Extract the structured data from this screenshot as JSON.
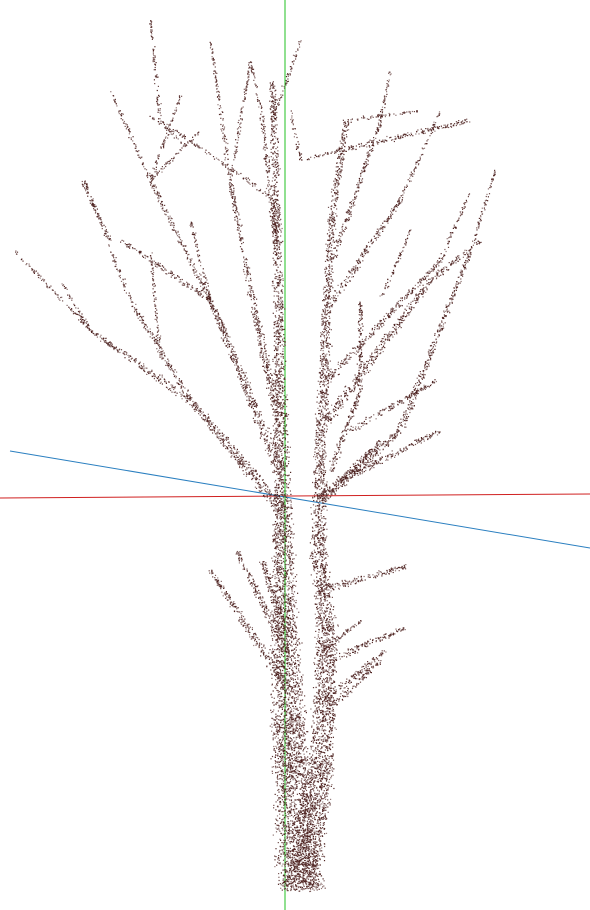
{
  "viewer": {
    "background_color": "#ffffff",
    "point_color": "#4a1e1c",
    "axes": {
      "x_color": "#d02020",
      "y_color": "#20c020",
      "z_color": "#2a7fc0"
    },
    "object": "tree-point-cloud"
  }
}
